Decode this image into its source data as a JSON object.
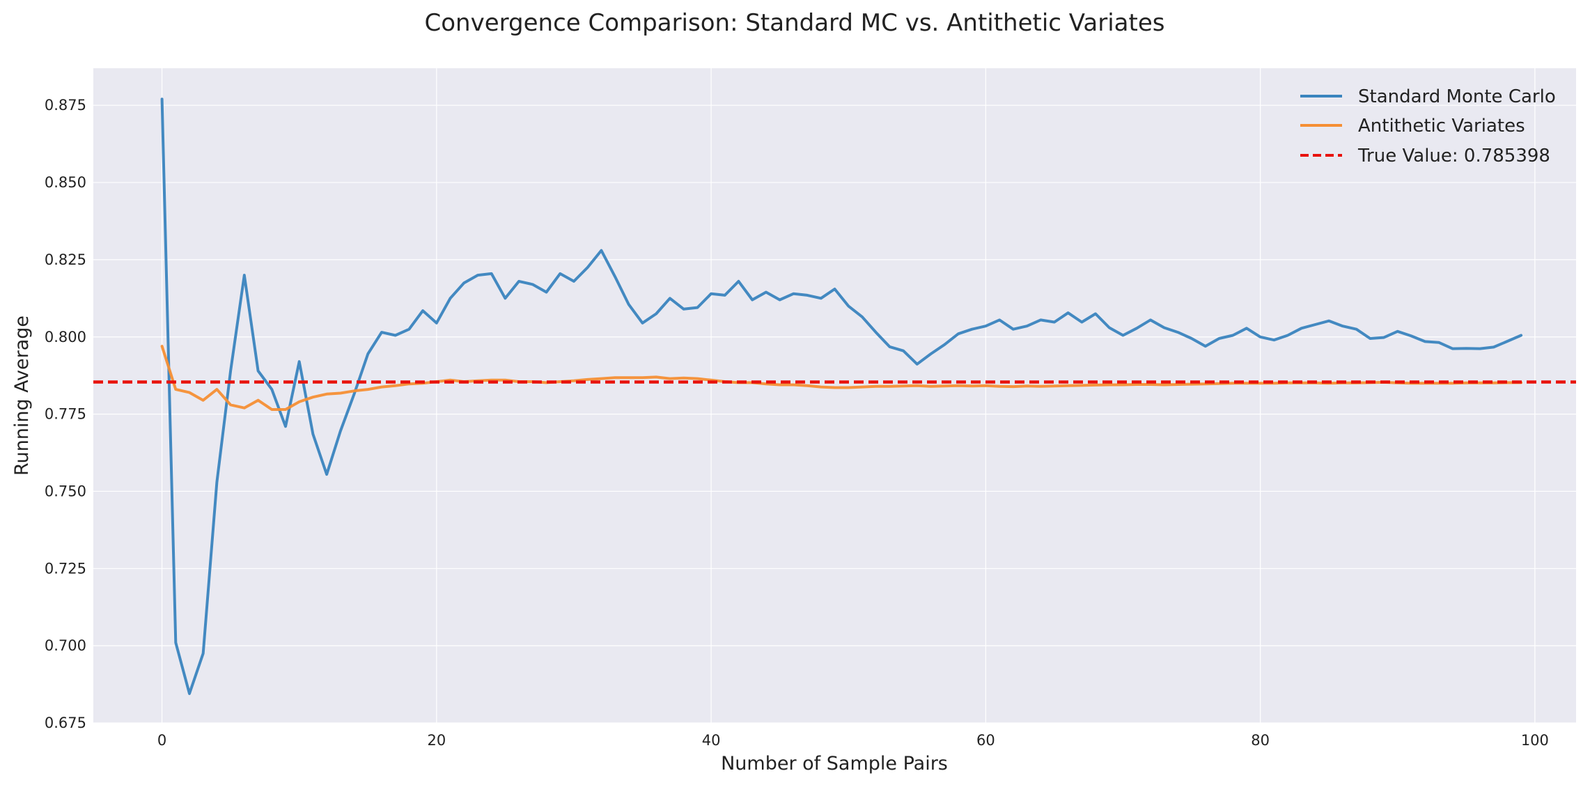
{
  "chart_data": {
    "type": "line",
    "title": "Convergence Comparison: Standard MC vs. Antithetic Variates",
    "xlabel": "Number of Sample Pairs",
    "ylabel": "Running Average",
    "xlim": [
      -5,
      103
    ],
    "ylim": [
      0.675,
      0.887
    ],
    "xticks": [
      0,
      20,
      40,
      60,
      80,
      100
    ],
    "xtick_labels": [
      "0",
      "20",
      "40",
      "60",
      "80",
      "100"
    ],
    "yticks": [
      0.675,
      0.7,
      0.725,
      0.75,
      0.775,
      0.8,
      0.825,
      0.85,
      0.875
    ],
    "ytick_labels": [
      "0.675",
      "0.700",
      "0.725",
      "0.750",
      "0.775",
      "0.800",
      "0.825",
      "0.850",
      "0.875"
    ],
    "grid": true,
    "legend_position": "top-right",
    "series": [
      {
        "name": "Standard Monte Carlo",
        "color": "#3a84be",
        "style": "solid",
        "values": [
          0.877,
          0.701,
          0.6845,
          0.6975,
          0.753,
          0.789,
          0.82,
          0.789,
          0.783,
          0.771,
          0.792,
          0.7685,
          0.7555,
          0.7695,
          0.7815,
          0.7945,
          0.8015,
          0.8005,
          0.8025,
          0.8085,
          0.8045,
          0.8125,
          0.8175,
          0.82,
          0.8205,
          0.8125,
          0.818,
          0.817,
          0.8145,
          0.8205,
          0.818,
          0.8225,
          0.828,
          0.8195,
          0.8105,
          0.8045,
          0.8075,
          0.8125,
          0.809,
          0.8095,
          0.814,
          0.8135,
          0.818,
          0.812,
          0.8145,
          0.812,
          0.814,
          0.8135,
          0.8125,
          0.8155,
          0.81,
          0.8065,
          0.8015,
          0.7968,
          0.7955,
          0.7912,
          0.7945,
          0.7975,
          0.801,
          0.8025,
          0.8035,
          0.8055,
          0.8025,
          0.8035,
          0.8055,
          0.8048,
          0.8078,
          0.8048,
          0.8075,
          0.803,
          0.8005,
          0.8028,
          0.8055,
          0.803,
          0.8015,
          0.7995,
          0.797,
          0.7995,
          0.8005,
          0.8028,
          0.8,
          0.799,
          0.8005,
          0.8028,
          0.804,
          0.8052,
          0.8035,
          0.8025,
          0.7995,
          0.7998,
          0.8018,
          0.8003,
          0.7985,
          0.7982,
          0.7962,
          0.7963,
          0.7962,
          0.7967,
          0.7986,
          0.8005
        ]
      },
      {
        "name": "Antithetic Variates",
        "color": "#f58f34",
        "style": "solid",
        "values": [
          0.797,
          0.783,
          0.782,
          0.7795,
          0.783,
          0.778,
          0.777,
          0.7795,
          0.7765,
          0.7765,
          0.779,
          0.7805,
          0.7815,
          0.7818,
          0.7825,
          0.783,
          0.7838,
          0.7842,
          0.7848,
          0.785,
          0.7855,
          0.786,
          0.7855,
          0.7858,
          0.786,
          0.786,
          0.7855,
          0.7855,
          0.7852,
          0.7855,
          0.7858,
          0.7862,
          0.7865,
          0.7868,
          0.7868,
          0.7868,
          0.787,
          0.7865,
          0.7867,
          0.7865,
          0.786,
          0.7855,
          0.7852,
          0.7852,
          0.7848,
          0.7845,
          0.7845,
          0.7842,
          0.7838,
          0.7836,
          0.7836,
          0.7838,
          0.784,
          0.784,
          0.7841,
          0.7842,
          0.784,
          0.7841,
          0.7842,
          0.7841,
          0.7842,
          0.784,
          0.7839,
          0.7841,
          0.784,
          0.7841,
          0.7842,
          0.7843,
          0.7844,
          0.7845,
          0.7845,
          0.7846,
          0.7846,
          0.7845,
          0.7846,
          0.7847,
          0.7848,
          0.7849,
          0.785,
          0.785,
          0.785,
          0.785,
          0.7851,
          0.7851,
          0.7851,
          0.785,
          0.7851,
          0.7851,
          0.7852,
          0.7853,
          0.7851,
          0.785,
          0.785,
          0.785,
          0.785,
          0.7851,
          0.7851,
          0.7851,
          0.7852,
          0.7852
        ]
      }
    ],
    "reference_line": {
      "name": "True Value: 0.785398",
      "value": 0.785398,
      "color": "#e8120c",
      "style": "dashed"
    },
    "colors": {
      "plot_background": "#e9e9f1",
      "grid": "#ffffff"
    }
  }
}
